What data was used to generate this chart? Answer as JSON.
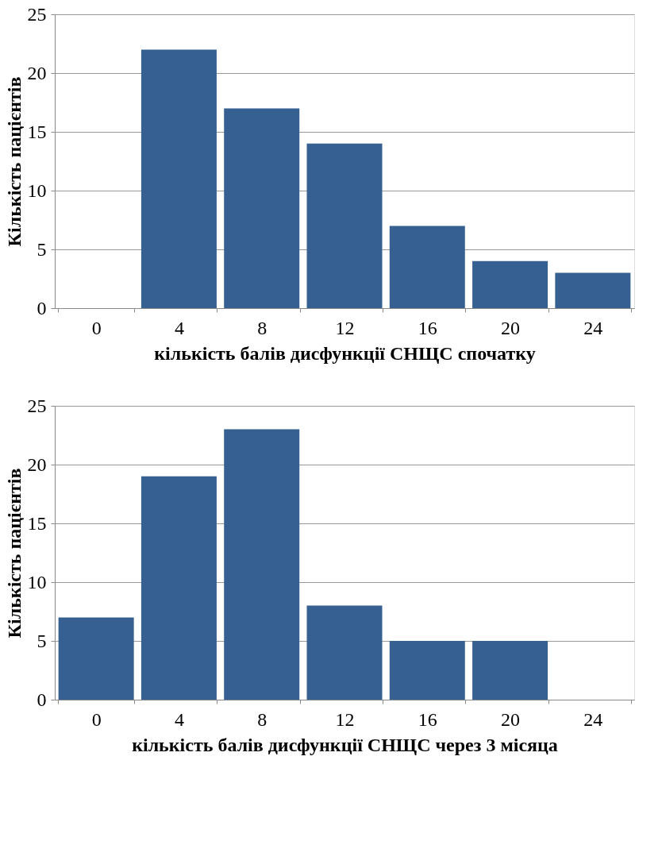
{
  "chart_data": [
    {
      "type": "bar",
      "xlabel": "кількість балів дисфункції СНЩС спочатку",
      "ylabel": "Кількість пацієнтів",
      "categories": [
        "0",
        "4",
        "8",
        "12",
        "16",
        "20",
        "24"
      ],
      "values": [
        0,
        22,
        17,
        14,
        7,
        4,
        3
      ],
      "color": "#376092",
      "ylim": [
        0,
        25
      ],
      "yticks": [
        0,
        5,
        10,
        15,
        20,
        25
      ],
      "grid": "y"
    },
    {
      "type": "bar",
      "xlabel": "кількість балів дисфункції СНЩС через 3 місяца",
      "ylabel": "Кількість пацієнтів",
      "categories": [
        "0",
        "4",
        "8",
        "12",
        "16",
        "20",
        "24"
      ],
      "values": [
        7,
        19,
        23,
        8,
        5,
        5,
        0
      ],
      "color": "#376092",
      "ylim": [
        0,
        25
      ],
      "yticks": [
        0,
        5,
        10,
        15,
        20,
        25
      ],
      "grid": "y"
    }
  ]
}
